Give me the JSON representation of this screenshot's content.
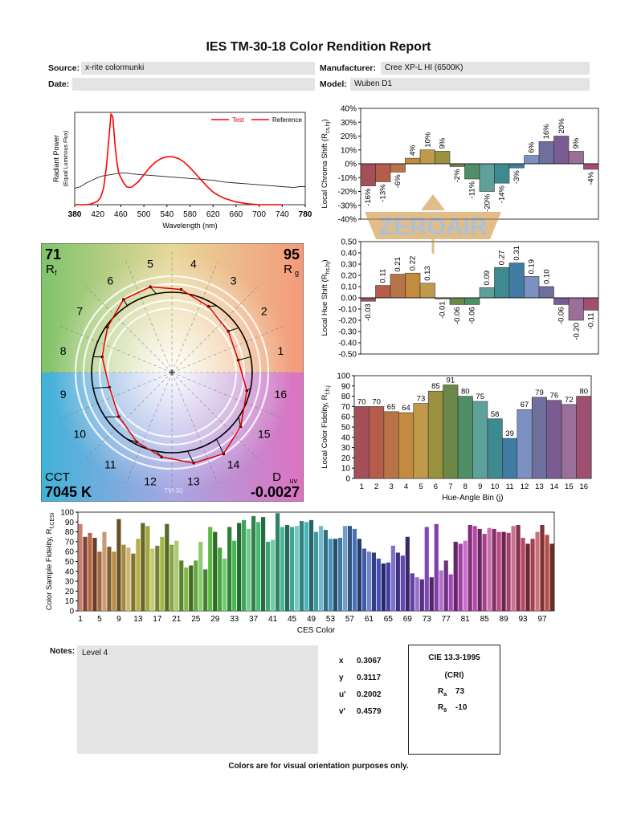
{
  "report": {
    "title": "IES TM-30-18 Color Rendition Report",
    "source_label": "Source:",
    "source_value": "x-rite colormunki",
    "date_label": "Date:",
    "date_value": "",
    "manufacturer_label": "Manufacturer:",
    "manufacturer_value": "Cree XP-L HI (6500K)",
    "model_label": "Model:",
    "model_value": "Wuben D1",
    "notes_label": "Notes:",
    "notes_value": "Level 4",
    "footer": "Colors are for visual orientation purposes only.",
    "watermark": "ZEROAIR"
  },
  "chromaticity": {
    "x_label": "x",
    "x_value": "0.3067",
    "y_label": "y",
    "y_value": "0.3117",
    "u_label": "u'",
    "u_value": "0.2002",
    "v_label": "v'",
    "v_value": "0.4579"
  },
  "cri": {
    "title": "CIE 13.3-1995",
    "subtitle": "(CRI)",
    "ra_label": "R",
    "ra_sub": "a",
    "ra_value": "73",
    "r9_label": "R",
    "r9_sub": "9",
    "r9_value": "-10"
  },
  "vector_graphic": {
    "rf_value": "71",
    "rf_label": "R",
    "rf_sub": "f",
    "rg_value": "95",
    "rg_label": "R",
    "rg_sub": "g",
    "cct_label": "CCT",
    "cct_value": "7045 K",
    "duv_label": "D",
    "duv_sub": "uv",
    "duv_value": "-0.0027",
    "bin_numbers": [
      "1",
      "2",
      "3",
      "4",
      "5",
      "6",
      "7",
      "8",
      "9",
      "10",
      "11",
      "12",
      "13",
      "14",
      "15",
      "16"
    ],
    "center_label": "TM-30"
  },
  "chart_data": [
    {
      "id": "spd",
      "type": "line",
      "xlabel": "Wavelength (nm)",
      "ylabel": "Radiant Power",
      "ylabel2": "(Equal Luminous Flux)",
      "xlim": [
        380,
        780
      ],
      "xticks": [
        380,
        420,
        460,
        500,
        540,
        580,
        620,
        660,
        700,
        740,
        780
      ],
      "legend": [
        "Test",
        "Reference"
      ],
      "legend_position": "top-right",
      "series": [
        {
          "name": "Test",
          "color": "#ff0000",
          "x": [
            380,
            400,
            410,
            420,
            425,
            430,
            435,
            440,
            443,
            446,
            448,
            450,
            453,
            456,
            460,
            465,
            470,
            475,
            480,
            490,
            500,
            510,
            520,
            530,
            540,
            550,
            560,
            570,
            580,
            590,
            600,
            610,
            620,
            630,
            640,
            650,
            660,
            670,
            680,
            690,
            700,
            720,
            740
          ],
          "y": [
            0,
            0,
            0.01,
            0.04,
            0.08,
            0.18,
            0.42,
            0.78,
            1.0,
            0.97,
            0.82,
            0.66,
            0.48,
            0.36,
            0.3,
            0.24,
            0.2,
            0.19,
            0.2,
            0.25,
            0.33,
            0.41,
            0.47,
            0.51,
            0.53,
            0.53,
            0.51,
            0.47,
            0.41,
            0.34,
            0.27,
            0.2,
            0.14,
            0.1,
            0.07,
            0.05,
            0.03,
            0.02,
            0.01,
            0.005,
            0,
            0,
            0
          ]
        },
        {
          "name": "Reference",
          "color": "#222222",
          "x": [
            380,
            390,
            400,
            410,
            420,
            430,
            440,
            450,
            460,
            470,
            480,
            500,
            520,
            540,
            560,
            580,
            600,
            620,
            640,
            660,
            680,
            700,
            720,
            740,
            760,
            770,
            780
          ],
          "y": [
            0.18,
            0.2,
            0.24,
            0.27,
            0.3,
            0.32,
            0.33,
            0.34,
            0.35,
            0.35,
            0.34,
            0.33,
            0.32,
            0.31,
            0.3,
            0.29,
            0.28,
            0.27,
            0.25,
            0.24,
            0.23,
            0.22,
            0.21,
            0.2,
            0.19,
            0.2,
            0.2
          ]
        }
      ]
    },
    {
      "id": "chroma",
      "type": "bar",
      "ylabel": "Local Chroma Shift (R",
      "ylabel_sub": "cs,hj",
      "ylim": [
        -40,
        40
      ],
      "yticks": [
        "40%",
        "30%",
        "20%",
        "10%",
        "0%",
        "-10%",
        "-20%",
        "-30%",
        "-40%"
      ],
      "categories": [
        "1",
        "2",
        "3",
        "4",
        "5",
        "6",
        "7",
        "8",
        "9",
        "10",
        "11",
        "12",
        "13",
        "14",
        "15",
        "16"
      ],
      "values": [
        -16,
        -13,
        -6,
        4,
        10,
        9,
        -2,
        -11,
        -20,
        -14,
        -3,
        6,
        16,
        20,
        9,
        -4
      ],
      "labels": [
        "-16%",
        "-13%",
        "-6%",
        "4%",
        "10%",
        "9%",
        "-2%",
        "-11%",
        "-20%",
        "-14%",
        "-3%",
        "6%",
        "16%",
        "20%",
        "9%",
        "-4%"
      ]
    },
    {
      "id": "hue",
      "type": "bar",
      "ylabel": "Local Hue Shift (R",
      "ylabel_sub": "hs,hj",
      "ylim": [
        -0.5,
        0.5
      ],
      "yticks": [
        "0.50",
        "0.40",
        "0.30",
        "0.20",
        "0.10",
        "0.00",
        "-0.10",
        "-0.20",
        "-0.30",
        "-0.40",
        "-0.50"
      ],
      "categories": [
        "1",
        "2",
        "3",
        "4",
        "5",
        "6",
        "7",
        "8",
        "9",
        "10",
        "11",
        "12",
        "13",
        "14",
        "15",
        "16"
      ],
      "values": [
        -0.03,
        0.11,
        0.21,
        0.22,
        0.13,
        -0.01,
        -0.06,
        -0.06,
        0.09,
        0.27,
        0.31,
        0.19,
        0.1,
        -0.06,
        -0.2,
        -0.11
      ],
      "labels": [
        "-0.03",
        "0.11",
        "0.21",
        "0.22",
        "0.13",
        "-0.01",
        "-0.06",
        "-0.06",
        "0.09",
        "0.27",
        "0.31",
        "0.19",
        "0.10",
        "-0.06",
        "-0.20",
        "-0.11"
      ]
    },
    {
      "id": "fidelity",
      "type": "bar",
      "xlabel": "Hue-Angle Bin (j)",
      "ylabel": "Local Color Fidelity, R",
      "ylabel_sub": "f,h,j",
      "ylim": [
        0,
        100
      ],
      "yticks": [
        "100",
        "90",
        "80",
        "70",
        "60",
        "50",
        "40",
        "30",
        "20",
        "10",
        "0"
      ],
      "categories": [
        "1",
        "2",
        "3",
        "4",
        "5",
        "6",
        "7",
        "8",
        "9",
        "10",
        "11",
        "12",
        "13",
        "14",
        "15",
        "16"
      ],
      "values": [
        70,
        70,
        65,
        64,
        73,
        85,
        91,
        80,
        75,
        58,
        39,
        67,
        79,
        76,
        72,
        80
      ]
    },
    {
      "id": "ces",
      "type": "bar",
      "xlabel": "CES Color",
      "ylabel": "Color Sample Fidelity, R",
      "ylabel_sub": "f,CESi",
      "ylim": [
        0,
        100
      ],
      "yticks": [
        "100",
        "90",
        "80",
        "70",
        "60",
        "50",
        "40",
        "30",
        "20",
        "10",
        "0"
      ],
      "xticks": [
        "1",
        "5",
        "9",
        "13",
        "17",
        "21",
        "25",
        "29",
        "33",
        "37",
        "41",
        "45",
        "49",
        "53",
        "57",
        "61",
        "65",
        "69",
        "73",
        "77",
        "81",
        "85",
        "89",
        "93",
        "97"
      ],
      "values": [
        88,
        75,
        79,
        74,
        60,
        80,
        65,
        60,
        93,
        67,
        64,
        58,
        73,
        89,
        86,
        63,
        66,
        75,
        88,
        67,
        71,
        51,
        44,
        46,
        51,
        70,
        42,
        85,
        80,
        64,
        53,
        85,
        71,
        89,
        92,
        83,
        96,
        90,
        95,
        70,
        72,
        99,
        85,
        87,
        85,
        86,
        91,
        90,
        92,
        80,
        86,
        82,
        73,
        73,
        74,
        86,
        86,
        83,
        73,
        63,
        60,
        59,
        53,
        48,
        49,
        66,
        59,
        56,
        75,
        38,
        34,
        32,
        85,
        34,
        88,
        41,
        51,
        37,
        70,
        68,
        71,
        87,
        86,
        83,
        78,
        84,
        83,
        80,
        80,
        79,
        86,
        87,
        74,
        68,
        73,
        80,
        87,
        77,
        68
      ]
    }
  ],
  "colors": {
    "bins": [
      "#a35059",
      "#b55d4a",
      "#b87348",
      "#c28b3e",
      "#bf9a4b",
      "#9b9240",
      "#6b8849",
      "#4e8f68",
      "#5ea19b",
      "#3f8a8f",
      "#3f7ba2",
      "#7d90c2",
      "#6f6f9d",
      "#7a5c92",
      "#9a7098",
      "#a04f70"
    ]
  }
}
